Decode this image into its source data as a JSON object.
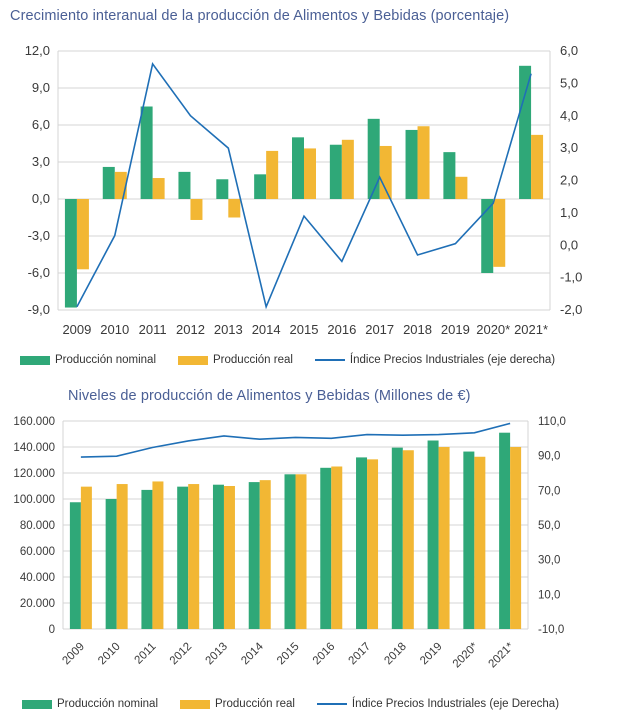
{
  "colors": {
    "nominal": "#2fa878",
    "real": "#f2b734",
    "index": "#1f6fb6",
    "grid": "#d4d4d4",
    "title": "#4a5f95"
  },
  "chart_data": [
    {
      "type": "bar",
      "title": "Crecimiento interanual de la producción de Alimentos y Bebidas (porcentaje)",
      "categories": [
        "2009",
        "2010",
        "2011",
        "2012",
        "2013",
        "2014",
        "2015",
        "2016",
        "2017",
        "2018",
        "2019",
        "2020*",
        "2021*"
      ],
      "series": [
        {
          "name": "Producción nominal",
          "axis": "left",
          "values": [
            -8.8,
            2.6,
            7.5,
            2.2,
            1.6,
            2.0,
            5.0,
            4.4,
            6.5,
            5.6,
            3.8,
            -6.0,
            10.8
          ]
        },
        {
          "name": "Producción real",
          "axis": "left",
          "values": [
            -5.7,
            2.2,
            1.7,
            -1.7,
            -1.5,
            3.9,
            4.1,
            4.8,
            4.3,
            5.9,
            1.8,
            -5.5,
            5.2
          ]
        },
        {
          "name": "Índice Precios Industriales (eje derecha)",
          "type": "line",
          "axis": "right",
          "values": [
            -1.9,
            0.3,
            5.6,
            4.0,
            3.0,
            -1.9,
            0.9,
            -0.5,
            2.1,
            -0.3,
            0.05,
            1.3,
            5.3
          ]
        }
      ],
      "left_ticks": [
        "12,0",
        "9,0",
        "6,0",
        "3,0",
        "0,0",
        "-3,0",
        "-6,0",
        "-9,0"
      ],
      "right_ticks": [
        "6,0",
        "5,0",
        "4,0",
        "3,0",
        "2,0",
        "1,0",
        "0,0",
        "-1,0",
        "-2,0"
      ],
      "ylim": [
        -9,
        12
      ],
      "y2lim": [
        -2,
        6
      ],
      "grid": true,
      "legend": "bottom"
    },
    {
      "type": "bar",
      "title": "Niveles de producción de Alimentos y Bebidas (Millones de €)",
      "categories": [
        "2009",
        "2010",
        "2011",
        "2012",
        "2013",
        "2014",
        "2015",
        "2016",
        "2017",
        "2018",
        "2019",
        "2020*",
        "2021*"
      ],
      "series": [
        {
          "name": "Producción nominal",
          "axis": "left",
          "values": [
            97500,
            100000,
            107000,
            109500,
            111000,
            113000,
            119000,
            124000,
            132000,
            139500,
            145000,
            136500,
            151000
          ]
        },
        {
          "name": "Producción real",
          "axis": "left",
          "values": [
            109500,
            111500,
            113500,
            111500,
            110000,
            114500,
            119000,
            125000,
            130500,
            137500,
            140000,
            132500,
            140000
          ]
        },
        {
          "name": "Índice Precios Industriales (eje Derecha)",
          "type": "line",
          "axis": "right",
          "values": [
            89.2,
            89.7,
            94.7,
            98.5,
            101.4,
            99.5,
            100.5,
            100.0,
            102.2,
            101.8,
            102.2,
            103.2,
            108.6
          ]
        }
      ],
      "left_ticks": [
        "160.000",
        "140.000",
        "120.000",
        "100.000",
        "80.000",
        "60.000",
        "40.000",
        "20.000",
        "0"
      ],
      "right_ticks": [
        "110,0",
        "90,0",
        "70,0",
        "50,0",
        "30,0",
        "10,0",
        "-10,0"
      ],
      "ylim": [
        0,
        160000
      ],
      "y2lim": [
        -10,
        110
      ],
      "grid": true,
      "legend": "bottom"
    }
  ],
  "legend1": {
    "nominal": "Producción nominal",
    "real": "Producción real",
    "index": "Índice Precios Industriales (eje derecha)"
  },
  "legend2": {
    "nominal": "Producción nominal",
    "real": "Producción real",
    "index": "Índice Precios Industriales (eje Derecha)"
  }
}
